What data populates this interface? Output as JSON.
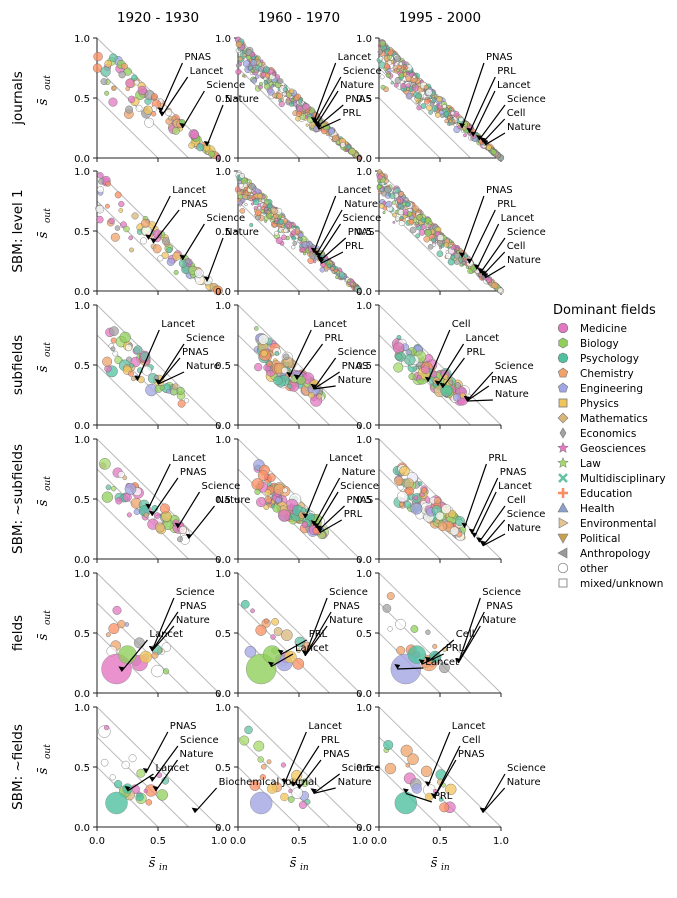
{
  "chart_data": {
    "type": "scatter",
    "columns": [
      "1920 - 1930",
      "1960 - 1970",
      "1995 - 2000"
    ],
    "rows": [
      "journals",
      "SBM: level 1",
      "subfields",
      "SBM: ~subfields",
      "fields",
      "SBM: ~fields"
    ],
    "xlabel": "s̄",
    "xlabel_sub": "in",
    "ylabel": "s̄",
    "ylabel_sub": "out",
    "xlim": [
      0,
      1
    ],
    "ylim": [
      0,
      1
    ],
    "x_ticks": [
      "0.0",
      "0.5",
      "1.0"
    ],
    "y_ticks": [
      "0.0",
      "0.5",
      "1.0"
    ],
    "diagonal_guides": [
      0.5,
      0.75,
      1.0
    ],
    "legend": {
      "title": "Dominant fields",
      "position": "right",
      "items": [
        {
          "label": "Medicine",
          "color": "#e377c2",
          "marker": "circle"
        },
        {
          "label": "Biology",
          "color": "#8fcf5a",
          "marker": "hexagon"
        },
        {
          "label": "Psychology",
          "color": "#4fc1a0",
          "marker": "octagon"
        },
        {
          "label": "Chemistry",
          "color": "#f0a36a",
          "marker": "pentagon"
        },
        {
          "label": "Engineering",
          "color": "#a2a5e3",
          "marker": "pentagon"
        },
        {
          "label": "Physics",
          "color": "#f2c55c",
          "marker": "square"
        },
        {
          "label": "Mathematics",
          "color": "#d9b57a",
          "marker": "diamond"
        },
        {
          "label": "Economics",
          "color": "#a3a3a3",
          "marker": "thin-diamond"
        },
        {
          "label": "Geosciences",
          "color": "#e377c2",
          "marker": "star"
        },
        {
          "label": "Law",
          "color": "#a5d96a",
          "marker": "star"
        },
        {
          "label": "Multidisciplinary",
          "color": "#66c2a5",
          "marker": "x"
        },
        {
          "label": "Education",
          "color": "#fc8d62",
          "marker": "plus"
        },
        {
          "label": "Health",
          "color": "#8da0cb",
          "marker": "triangle-up"
        },
        {
          "label": "Environmental",
          "color": "#e5c494",
          "marker": "triangle-right"
        },
        {
          "label": "Political",
          "color": "#c8a050",
          "marker": "triangle-down"
        },
        {
          "label": "Anthropology",
          "color": "#999999",
          "marker": "triangle-left"
        },
        {
          "label": "other",
          "color": "#ffffff",
          "marker": "open-circle"
        },
        {
          "label": "mixed/unknown",
          "color": "#ffffff",
          "marker": "open-square"
        }
      ]
    },
    "annotations": [
      {
        "row": 0,
        "col": 0,
        "items": [
          {
            "text": "PNAS",
            "x": 0.52,
            "y": 0.38
          },
          {
            "text": "Lancet",
            "x": 0.53,
            "y": 0.35
          },
          {
            "text": "Science",
            "x": 0.7,
            "y": 0.25
          },
          {
            "text": "Nature",
            "x": 0.9,
            "y": 0.1
          }
        ]
      },
      {
        "row": 0,
        "col": 1,
        "items": [
          {
            "text": "Lancet",
            "x": 0.62,
            "y": 0.3
          },
          {
            "text": "Science",
            "x": 0.63,
            "y": 0.29
          },
          {
            "text": "Nature",
            "x": 0.64,
            "y": 0.27
          },
          {
            "text": "PNAS",
            "x": 0.65,
            "y": 0.26
          },
          {
            "text": "PRL",
            "x": 0.66,
            "y": 0.24
          }
        ]
      },
      {
        "row": 0,
        "col": 2,
        "items": [
          {
            "text": "PNAS",
            "x": 0.68,
            "y": 0.25
          },
          {
            "text": "PRL",
            "x": 0.74,
            "y": 0.21
          },
          {
            "text": "Lancet",
            "x": 0.77,
            "y": 0.18
          },
          {
            "text": "Science",
            "x": 0.82,
            "y": 0.15
          },
          {
            "text": "Cell",
            "x": 0.85,
            "y": 0.13
          },
          {
            "text": "Nature",
            "x": 0.87,
            "y": 0.11
          }
        ]
      },
      {
        "row": 1,
        "col": 0,
        "items": [
          {
            "text": "Lancet",
            "x": 0.42,
            "y": 0.43
          },
          {
            "text": "PNAS",
            "x": 0.46,
            "y": 0.4
          },
          {
            "text": "Science",
            "x": 0.7,
            "y": 0.26
          },
          {
            "text": "Nature",
            "x": 0.9,
            "y": 0.08
          }
        ]
      },
      {
        "row": 1,
        "col": 1,
        "items": [
          {
            "text": "Lancet",
            "x": 0.62,
            "y": 0.32
          },
          {
            "text": "Nature",
            "x": 0.64,
            "y": 0.3
          },
          {
            "text": "Science",
            "x": 0.66,
            "y": 0.28
          },
          {
            "text": "PNAS",
            "x": 0.67,
            "y": 0.25
          },
          {
            "text": "PRL",
            "x": 0.68,
            "y": 0.23
          }
        ]
      },
      {
        "row": 1,
        "col": 2,
        "items": [
          {
            "text": "PNAS",
            "x": 0.68,
            "y": 0.28
          },
          {
            "text": "PRL",
            "x": 0.74,
            "y": 0.23
          },
          {
            "text": "Lancet",
            "x": 0.8,
            "y": 0.18
          },
          {
            "text": "Science",
            "x": 0.83,
            "y": 0.15
          },
          {
            "text": "Cell",
            "x": 0.85,
            "y": 0.13
          },
          {
            "text": "Nature",
            "x": 0.87,
            "y": 0.11
          }
        ]
      },
      {
        "row": 2,
        "col": 0,
        "items": [
          {
            "text": "Lancet",
            "x": 0.33,
            "y": 0.37
          },
          {
            "text": "Science",
            "x": 0.5,
            "y": 0.34
          },
          {
            "text": "PNAS",
            "x": 0.5,
            "y": 0.34
          },
          {
            "text": "Nature",
            "x": 0.5,
            "y": 0.34
          }
        ]
      },
      {
        "row": 2,
        "col": 1,
        "items": [
          {
            "text": "Lancet",
            "x": 0.42,
            "y": 0.4
          },
          {
            "text": "PRL",
            "x": 0.48,
            "y": 0.38
          },
          {
            "text": "Science",
            "x": 0.62,
            "y": 0.3
          },
          {
            "text": "PNAS",
            "x": 0.62,
            "y": 0.3
          },
          {
            "text": "Nature",
            "x": 0.62,
            "y": 0.3
          }
        ]
      },
      {
        "row": 2,
        "col": 2,
        "items": [
          {
            "text": "Cell",
            "x": 0.4,
            "y": 0.36
          },
          {
            "text": "Lancet",
            "x": 0.48,
            "y": 0.33
          },
          {
            "text": "PRL",
            "x": 0.52,
            "y": 0.31
          },
          {
            "text": "Science",
            "x": 0.72,
            "y": 0.2
          },
          {
            "text": "PNAS",
            "x": 0.72,
            "y": 0.2
          },
          {
            "text": "Nature",
            "x": 0.72,
            "y": 0.2
          }
        ]
      },
      {
        "row": 3,
        "col": 0,
        "items": [
          {
            "text": "Lancet",
            "x": 0.42,
            "y": 0.42
          },
          {
            "text": "PNAS",
            "x": 0.45,
            "y": 0.36
          },
          {
            "text": "Science",
            "x": 0.66,
            "y": 0.26
          },
          {
            "text": "Nature",
            "x": 0.75,
            "y": 0.17
          }
        ]
      },
      {
        "row": 3,
        "col": 1,
        "items": [
          {
            "text": "Lancet",
            "x": 0.55,
            "y": 0.34
          },
          {
            "text": "Nature",
            "x": 0.62,
            "y": 0.28
          },
          {
            "text": "Science",
            "x": 0.64,
            "y": 0.26
          },
          {
            "text": "PNAS",
            "x": 0.66,
            "y": 0.24
          },
          {
            "text": "PRL",
            "x": 0.67,
            "y": 0.22
          }
        ]
      },
      {
        "row": 3,
        "col": 2,
        "items": [
          {
            "text": "PRL",
            "x": 0.7,
            "y": 0.26
          },
          {
            "text": "PNAS",
            "x": 0.76,
            "y": 0.21
          },
          {
            "text": "Lancet",
            "x": 0.78,
            "y": 0.18
          },
          {
            "text": "Cell",
            "x": 0.82,
            "y": 0.14
          },
          {
            "text": "Science",
            "x": 0.85,
            "y": 0.11
          },
          {
            "text": "Nature",
            "x": 0.85,
            "y": 0.11
          }
        ]
      },
      {
        "row": 4,
        "col": 0,
        "items": [
          {
            "text": "Science",
            "x": 0.45,
            "y": 0.35
          },
          {
            "text": "PNAS",
            "x": 0.45,
            "y": 0.35
          },
          {
            "text": "Nature",
            "x": 0.45,
            "y": 0.35
          },
          {
            "text": "Lancet",
            "x": 0.2,
            "y": 0.18
          }
        ]
      },
      {
        "row": 4,
        "col": 1,
        "items": [
          {
            "text": "Science",
            "x": 0.55,
            "y": 0.31
          },
          {
            "text": "PNAS",
            "x": 0.55,
            "y": 0.31
          },
          {
            "text": "Nature",
            "x": 0.55,
            "y": 0.31
          },
          {
            "text": "PRL",
            "x": 0.35,
            "y": 0.32
          },
          {
            "text": "Lancet",
            "x": 0.27,
            "y": 0.22
          }
        ]
      },
      {
        "row": 4,
        "col": 2,
        "items": [
          {
            "text": "Science",
            "x": 0.65,
            "y": 0.25
          },
          {
            "text": "PNAS",
            "x": 0.65,
            "y": 0.25
          },
          {
            "text": "Nature",
            "x": 0.65,
            "y": 0.25
          },
          {
            "text": "Cell",
            "x": 0.4,
            "y": 0.26
          },
          {
            "text": "PRL",
            "x": 0.35,
            "y": 0.24
          },
          {
            "text": "Lancet",
            "x": 0.15,
            "y": 0.2
          }
        ]
      },
      {
        "row": 5,
        "col": 0,
        "items": [
          {
            "text": "PNAS",
            "x": 0.4,
            "y": 0.45
          },
          {
            "text": "Science",
            "x": 0.45,
            "y": 0.38
          },
          {
            "text": "Nature",
            "x": 0.48,
            "y": 0.3
          },
          {
            "text": "Lancet",
            "x": 0.25,
            "y": 0.3
          },
          {
            "text": "Biochemical Journal",
            "x": 0.8,
            "y": 0.12
          }
        ]
      },
      {
        "row": 5,
        "col": 1,
        "items": [
          {
            "text": "Lancet",
            "x": 0.38,
            "y": 0.36
          },
          {
            "text": "PRL",
            "x": 0.45,
            "y": 0.34
          },
          {
            "text": "PNAS",
            "x": 0.5,
            "y": 0.32
          },
          {
            "text": "Science",
            "x": 0.62,
            "y": 0.28
          },
          {
            "text": "Nature",
            "x": 0.62,
            "y": 0.28
          }
        ]
      },
      {
        "row": 5,
        "col": 2,
        "items": [
          {
            "text": "Lancet",
            "x": 0.4,
            "y": 0.34
          },
          {
            "text": "Cell",
            "x": 0.45,
            "y": 0.24
          },
          {
            "text": "PNAS",
            "x": 0.45,
            "y": 0.24
          },
          {
            "text": "Science",
            "x": 0.85,
            "y": 0.12
          },
          {
            "text": "Nature",
            "x": 0.85,
            "y": 0.12
          },
          {
            "text": "PRL",
            "x": 0.22,
            "y": 0.28
          }
        ]
      }
    ]
  }
}
